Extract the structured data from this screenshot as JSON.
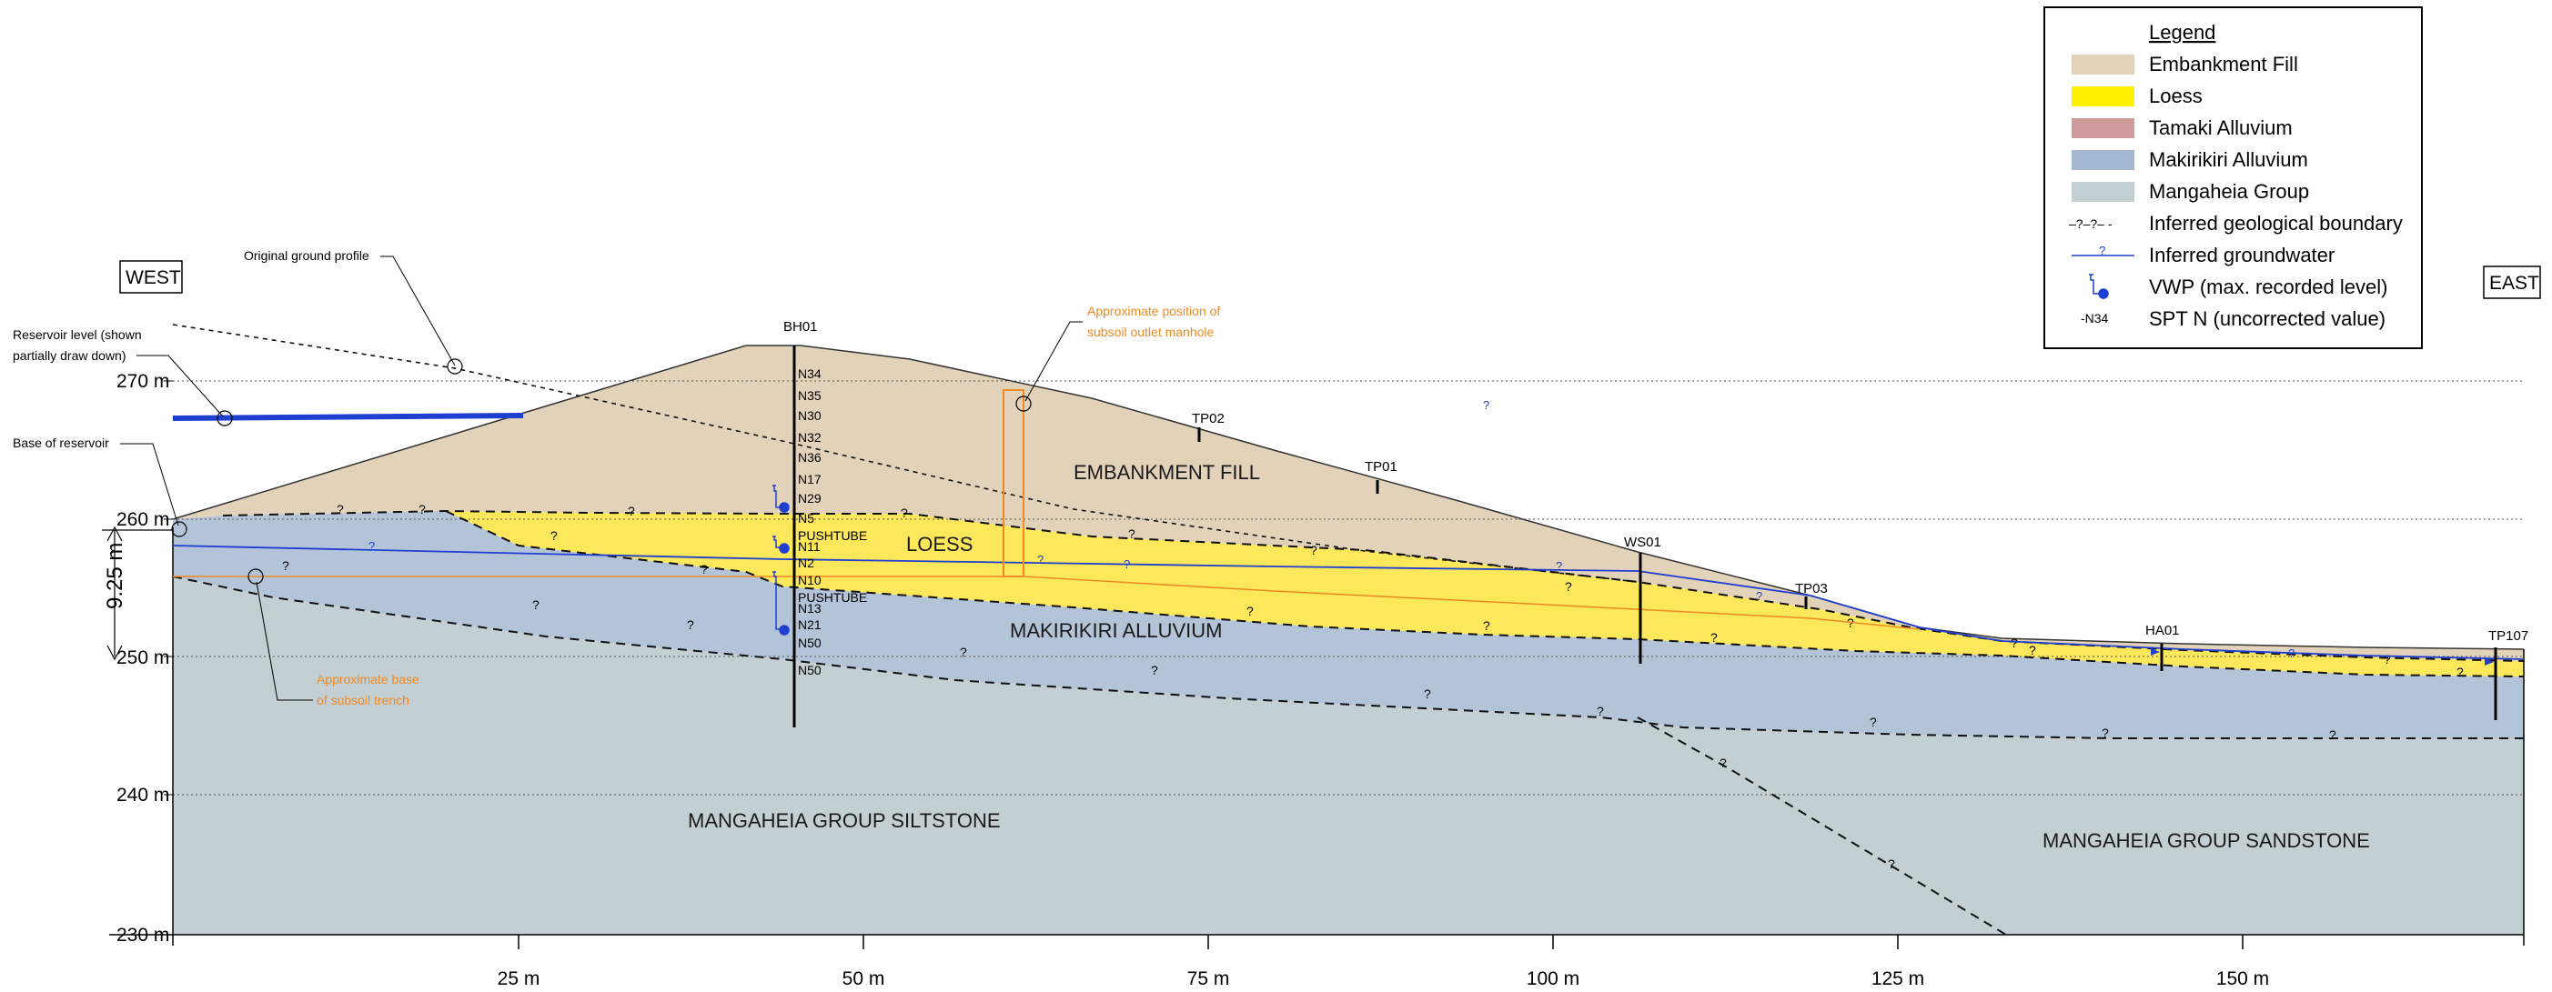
{
  "directions": {
    "west": "WEST",
    "east": "EAST"
  },
  "elevation_axis": {
    "labels": [
      {
        "text": "270 m",
        "value": 270
      },
      {
        "text": "260 m",
        "value": 260
      },
      {
        "text": "250 m",
        "value": 250
      },
      {
        "text": "240 m",
        "value": 240
      },
      {
        "text": "230 m",
        "value": 230
      }
    ],
    "dimension_label": "9.25 m"
  },
  "distance_axis": {
    "labels": [
      {
        "text": "25 m",
        "value": 25
      },
      {
        "text": "50 m",
        "value": 50
      },
      {
        "text": "75 m",
        "value": 75
      },
      {
        "text": "100 m",
        "value": 100
      },
      {
        "text": "125 m",
        "value": 125
      },
      {
        "text": "150 m",
        "value": 150
      }
    ]
  },
  "units": {
    "embankment_fill": "EMBANKMENT FILL",
    "loess": "LOESS",
    "makirikiri": "MAKIRIKIRI ALLUVIUM",
    "siltstone": "MANGAHEIA GROUP SILTSTONE",
    "sandstone": "MANGAHEIA GROUP SANDSTONE"
  },
  "callouts": {
    "original_ground": "Original ground profile",
    "reservoir_level_1": "Reservoir level (shown",
    "reservoir_level_2": "partially draw down)",
    "base_of_reservoir": "Base of reservoir",
    "manhole_1": "Approximate position of",
    "manhole_2": "subsoil outlet manhole",
    "trench_1": "Approximate base",
    "trench_2": "of subsoil trench"
  },
  "boreholes": {
    "bh01": "BH01",
    "tp02": "TP02",
    "tp01": "TP01",
    "ws01": "WS01",
    "tp03": "TP03",
    "ha01": "HA01",
    "tp107": "TP107"
  },
  "spt_values": [
    "N34",
    "N35",
    "N30",
    "N32",
    "N36",
    "N17",
    "N29",
    "N5",
    "PUSHTUBE",
    "N11",
    "N2",
    "N10",
    "PUSHTUBE",
    "N13",
    "N21",
    "N50",
    "N50"
  ],
  "inferred_symbol": "?",
  "legend": {
    "title": "Legend",
    "items": [
      {
        "label": "Embankment Fill",
        "color": "#e3d2ba",
        "kind": "fill"
      },
      {
        "label": "Loess",
        "color": "#fff200",
        "kind": "fill"
      },
      {
        "label": "Tamaki Alluvium",
        "color": "#cf9a9b",
        "kind": "fill"
      },
      {
        "label": "Makirikiri Alluvium",
        "color": "#a3b8d2",
        "kind": "fill"
      },
      {
        "label": "Mangaheia Group",
        "color": "#c3cfd3",
        "kind": "fill"
      },
      {
        "label": "Inferred geological boundary",
        "symbol": "–?–?– -",
        "kind": "dashed"
      },
      {
        "label": "Inferred groundwater",
        "color": "#1f3fd0",
        "kind": "line"
      },
      {
        "label": "VWP (max. recorded level)",
        "kind": "vwp"
      },
      {
        "label": "SPT N (uncorrected value)",
        "symbol": "-N34",
        "kind": "spt"
      }
    ]
  },
  "colors": {
    "embankment": "#e3d2ba",
    "loess": "#fde75a",
    "makirikiri": "#b3c3d8",
    "mangaheia": "#c3cfd3",
    "groundwater": "#1f3fd0",
    "reservoir": "#1f3fd0",
    "subsoil": "#f08a24"
  }
}
